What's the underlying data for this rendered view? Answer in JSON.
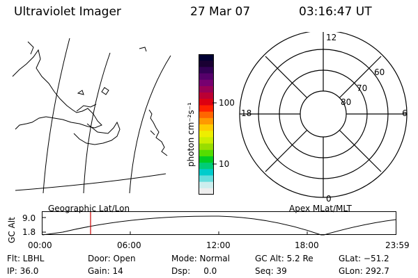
{
  "header": {
    "instrument": "Ultraviolet Imager",
    "date": "27 Mar 07",
    "time": "03:16:47 UT"
  },
  "colorbar": {
    "unit_label": "photon cm⁻²s⁻¹",
    "tick_labels": [
      "100",
      "10"
    ],
    "colors": [
      "#000033",
      "#1a0033",
      "#330055",
      "#55006a",
      "#770070",
      "#990055",
      "#bb0033",
      "#dd0011",
      "#ff2200",
      "#ff6600",
      "#ff9900",
      "#ffcc00",
      "#eeee00",
      "#ccee00",
      "#99dd00",
      "#55dd00",
      "#00cc22",
      "#00cc77",
      "#00cccc",
      "#66dddd",
      "#cceeee",
      "#eeeeee"
    ]
  },
  "polar": {
    "mlt_labels": {
      "top": "12",
      "bottom": "0",
      "left": "18",
      "right": "6"
    },
    "lat_labels": [
      "60",
      "70",
      "80"
    ]
  },
  "timeline": {
    "left_title": "Geographic Lat/Lon",
    "right_title": "Apex MLat/MLT",
    "axis_label": "GC Alt",
    "y_ticks": [
      "9.0",
      "1.8"
    ],
    "x_ticks": [
      "00:00",
      "06:00",
      "12:00",
      "18:00",
      "23:59"
    ],
    "marker_color": "#cc0000"
  },
  "footer": {
    "flt": "Flt: LBHL",
    "door": "Door: Open",
    "mode": "Mode: Normal",
    "gc_alt": "GC Alt: 5.2 Re",
    "glat": "GLat: −51.2",
    "ip": "IP: 36.0",
    "gain": "Gain: 14",
    "dsp": "Dsp:     0.0",
    "seq": "Seq: 39",
    "glon": "GLon: 292.7"
  }
}
